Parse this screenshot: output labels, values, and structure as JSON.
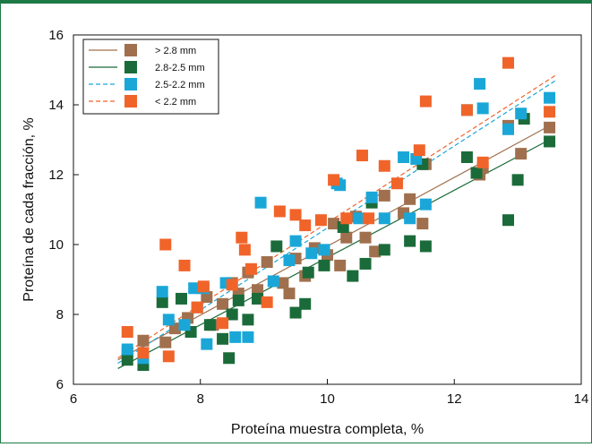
{
  "chart_data": {
    "type": "scatter",
    "title": "",
    "xlabel": "Proteína muestra completa, %",
    "ylabel": "Proteína de cada fracción, %",
    "xlim": [
      6,
      14
    ],
    "ylim": [
      6,
      16
    ],
    "xticks": [
      6,
      8,
      10,
      12,
      14
    ],
    "yticks": [
      6,
      8,
      10,
      12,
      14,
      16
    ],
    "grid": false,
    "legend_position": "top-left",
    "series": [
      {
        "name": "> 2.8 mm",
        "color": "#a0704e",
        "line_style": "solid",
        "fit": {
          "x": [
            6.7,
            13.5
          ],
          "y": [
            6.7,
            13.4
          ]
        },
        "points": [
          [
            6.85,
            6.9
          ],
          [
            7.1,
            7.25
          ],
          [
            7.45,
            7.2
          ],
          [
            7.6,
            7.6
          ],
          [
            7.8,
            7.9
          ],
          [
            7.95,
            8.2
          ],
          [
            8.1,
            8.5
          ],
          [
            8.2,
            7.7
          ],
          [
            8.35,
            8.3
          ],
          [
            8.5,
            8.9
          ],
          [
            8.6,
            8.6
          ],
          [
            8.75,
            9.2
          ],
          [
            8.9,
            8.7
          ],
          [
            9.05,
            9.5
          ],
          [
            9.3,
            8.9
          ],
          [
            9.5,
            9.6
          ],
          [
            9.65,
            9.1
          ],
          [
            9.8,
            9.9
          ],
          [
            10.0,
            9.7
          ],
          [
            10.1,
            10.6
          ],
          [
            10.3,
            10.2
          ],
          [
            10.45,
            10.8
          ],
          [
            10.6,
            10.2
          ],
          [
            10.75,
            9.8
          ],
          [
            10.9,
            11.4
          ],
          [
            11.2,
            10.9
          ],
          [
            11.3,
            11.3
          ],
          [
            11.5,
            10.6
          ],
          [
            11.55,
            12.3
          ],
          [
            12.4,
            12.0
          ],
          [
            12.45,
            12.2
          ],
          [
            12.85,
            13.4
          ],
          [
            13.05,
            12.6
          ],
          [
            13.5,
            13.35
          ],
          [
            9.4,
            8.6
          ],
          [
            10.2,
            9.4
          ]
        ]
      },
      {
        "name": "2.8-2.5 mm",
        "color": "#1b6b3a",
        "line_style": "solid",
        "fit": {
          "x": [
            6.7,
            13.5
          ],
          "y": [
            6.45,
            13.0
          ]
        },
        "points": [
          [
            6.85,
            6.7
          ],
          [
            7.1,
            6.55
          ],
          [
            7.4,
            8.35
          ],
          [
            7.7,
            8.45
          ],
          [
            7.85,
            7.5
          ],
          [
            8.15,
            7.7
          ],
          [
            8.35,
            7.3
          ],
          [
            8.45,
            6.75
          ],
          [
            8.5,
            8.0
          ],
          [
            8.6,
            8.4
          ],
          [
            8.75,
            7.85
          ],
          [
            8.9,
            8.45
          ],
          [
            9.2,
            9.95
          ],
          [
            9.5,
            8.05
          ],
          [
            9.65,
            8.3
          ],
          [
            9.7,
            9.2
          ],
          [
            9.95,
            9.4
          ],
          [
            10.25,
            10.5
          ],
          [
            10.4,
            9.1
          ],
          [
            10.6,
            9.45
          ],
          [
            10.7,
            11.2
          ],
          [
            10.9,
            9.85
          ],
          [
            11.3,
            10.1
          ],
          [
            11.5,
            12.3
          ],
          [
            11.55,
            9.95
          ],
          [
            12.2,
            12.5
          ],
          [
            12.35,
            12.05
          ],
          [
            12.85,
            10.7
          ],
          [
            13.0,
            11.85
          ],
          [
            13.1,
            13.6
          ],
          [
            13.5,
            12.95
          ]
        ]
      },
      {
        "name": "2.5-2.2 mm",
        "color": "#1aa7d8",
        "line_style": "dashed",
        "fit": {
          "x": [
            6.7,
            13.6
          ],
          "y": [
            6.6,
            14.7
          ]
        },
        "points": [
          [
            6.85,
            7.0
          ],
          [
            7.1,
            6.75
          ],
          [
            7.4,
            8.65
          ],
          [
            7.5,
            7.85
          ],
          [
            7.75,
            7.7
          ],
          [
            7.9,
            8.75
          ],
          [
            8.05,
            8.75
          ],
          [
            8.1,
            7.15
          ],
          [
            8.4,
            8.9
          ],
          [
            8.55,
            7.35
          ],
          [
            8.75,
            7.35
          ],
          [
            8.95,
            11.2
          ],
          [
            9.15,
            8.95
          ],
          [
            9.4,
            9.55
          ],
          [
            9.5,
            10.1
          ],
          [
            9.75,
            9.75
          ],
          [
            9.95,
            9.85
          ],
          [
            10.15,
            11.75
          ],
          [
            10.2,
            11.7
          ],
          [
            10.5,
            10.75
          ],
          [
            10.7,
            11.35
          ],
          [
            10.9,
            10.75
          ],
          [
            11.2,
            12.5
          ],
          [
            11.3,
            10.75
          ],
          [
            11.4,
            12.45
          ],
          [
            11.55,
            11.15
          ],
          [
            12.2,
            13.85
          ],
          [
            12.4,
            14.6
          ],
          [
            12.45,
            13.9
          ],
          [
            12.85,
            13.3
          ],
          [
            13.05,
            13.75
          ],
          [
            13.5,
            14.2
          ]
        ]
      },
      {
        "name": "< 2.2 mm",
        "color": "#f0642a",
        "line_style": "dashed",
        "fit": {
          "x": [
            6.7,
            13.6
          ],
          "y": [
            6.75,
            14.85
          ]
        },
        "points": [
          [
            6.85,
            7.5
          ],
          [
            7.1,
            6.9
          ],
          [
            7.45,
            10.0
          ],
          [
            7.5,
            6.8
          ],
          [
            7.75,
            9.4
          ],
          [
            7.95,
            8.2
          ],
          [
            8.05,
            8.8
          ],
          [
            8.35,
            7.75
          ],
          [
            8.5,
            8.85
          ],
          [
            8.65,
            10.2
          ],
          [
            8.7,
            9.85
          ],
          [
            8.8,
            9.3
          ],
          [
            9.05,
            8.35
          ],
          [
            9.25,
            10.95
          ],
          [
            9.5,
            10.85
          ],
          [
            9.65,
            10.55
          ],
          [
            9.9,
            10.7
          ],
          [
            10.1,
            11.85
          ],
          [
            10.3,
            10.75
          ],
          [
            10.55,
            12.55
          ],
          [
            10.65,
            10.75
          ],
          [
            10.9,
            12.25
          ],
          [
            11.1,
            11.75
          ],
          [
            11.45,
            12.7
          ],
          [
            11.55,
            14.1
          ],
          [
            12.2,
            13.85
          ],
          [
            12.45,
            12.35
          ],
          [
            12.85,
            15.2
          ],
          [
            13.5,
            13.8
          ]
        ]
      }
    ]
  }
}
